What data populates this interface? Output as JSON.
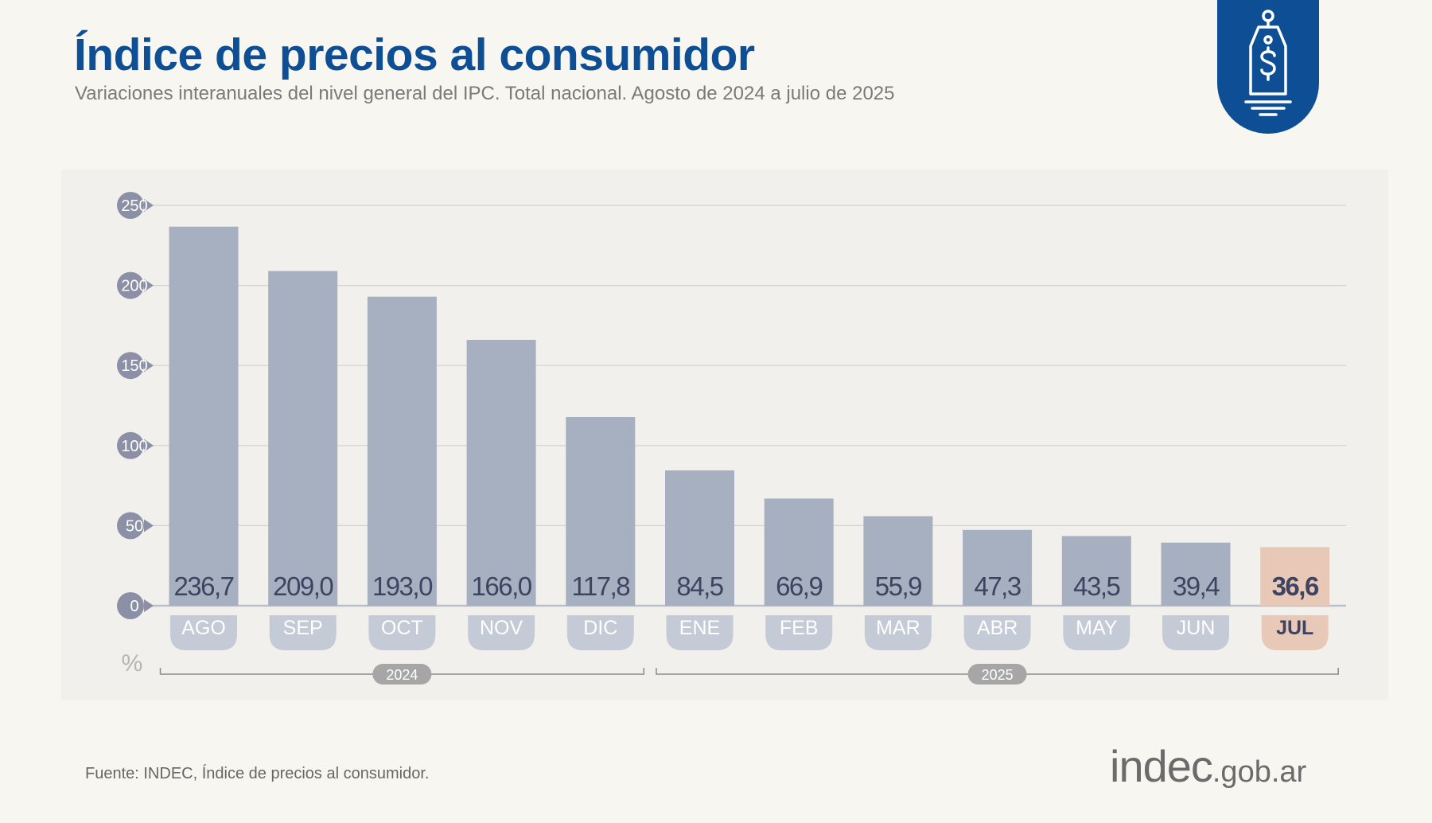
{
  "header": {
    "title": "Índice de precios al consumidor",
    "subtitle": "Variaciones interanuales del nivel general del IPC. Total nacional. Agosto de 2024 a julio de 2025"
  },
  "badge": {
    "icon": "price-tag-dollar-icon"
  },
  "chart_data": {
    "type": "bar",
    "categories": [
      "AGO",
      "SEP",
      "OCT",
      "NOV",
      "DIC",
      "ENE",
      "FEB",
      "MAR",
      "ABR",
      "MAY",
      "JUN",
      "JUL"
    ],
    "values": [
      236.7,
      209.0,
      193.0,
      166.0,
      117.8,
      84.5,
      66.9,
      55.9,
      47.3,
      43.5,
      39.4,
      36.6
    ],
    "value_labels": [
      "236,7",
      "209,0",
      "193,0",
      "166,0",
      "117,8",
      "84,5",
      "66,9",
      "55,9",
      "47,3",
      "43,5",
      "39,4",
      "36,6"
    ],
    "highlight_category": "JUL",
    "ylim": [
      0,
      250
    ],
    "yticks": [
      "250",
      "200",
      "150",
      "100",
      "50",
      "0"
    ],
    "yunit": "%",
    "year_groups": [
      {
        "label": "2024",
        "first": 0,
        "last": 4
      },
      {
        "label": "2025",
        "first": 5,
        "last": 11
      }
    ],
    "grid": true,
    "colors": {
      "bar": "#a6b0c0",
      "bar_highlight": "#e8c9b7",
      "month_pill": "#c5cbd6",
      "month_pill_highlight": "#e8c9b7",
      "value_text": "#3d4360",
      "tick_bubble": "#8c90a6",
      "year_pill": "#a6a6a6"
    }
  },
  "footer": {
    "source": "Fuente: INDEC, Índice de precios al consumidor.",
    "logo_main": "indec",
    "logo_tld": ".gob.ar"
  }
}
